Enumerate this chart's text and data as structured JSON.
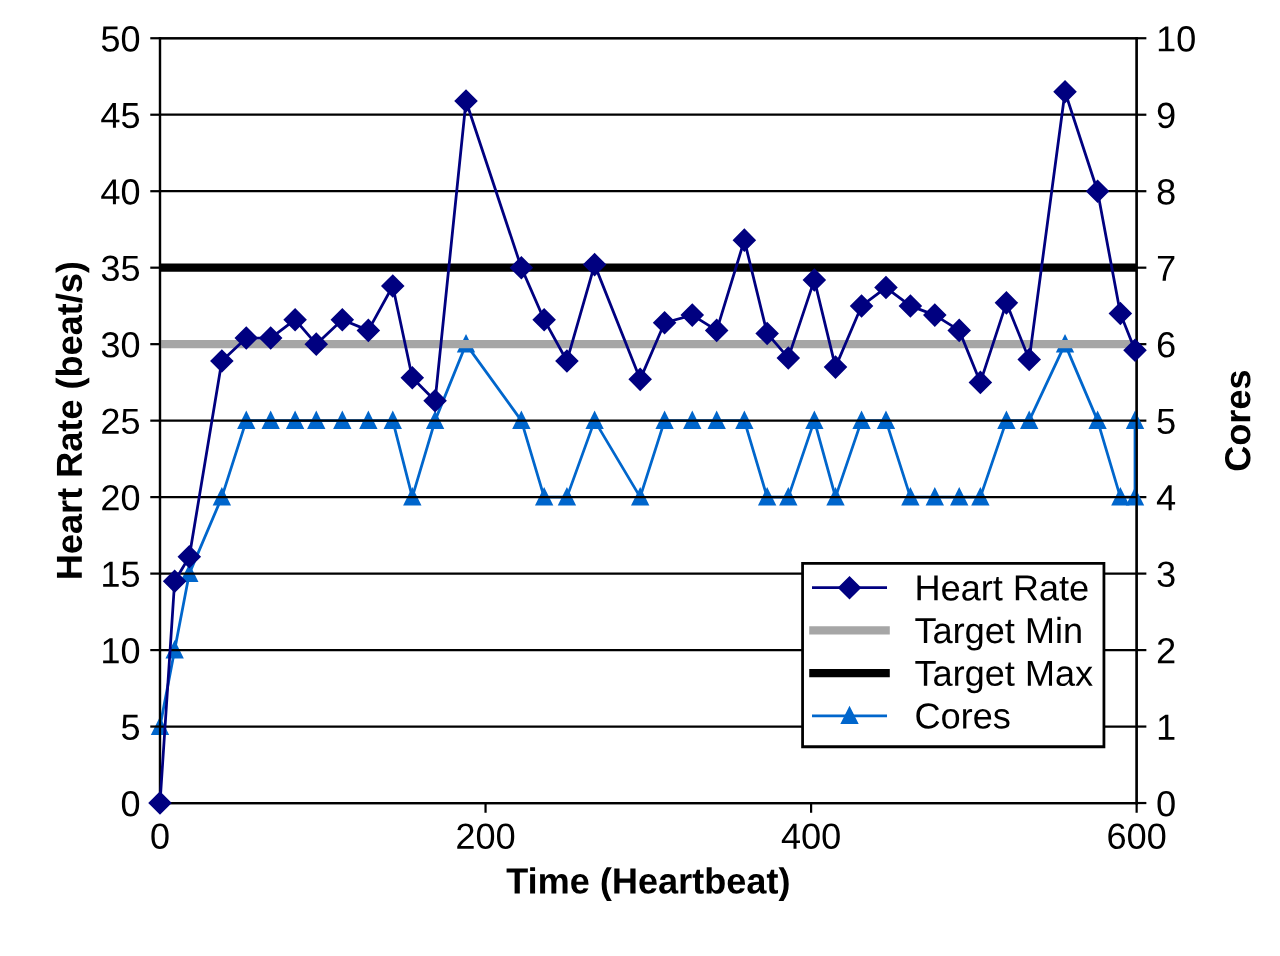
{
  "chart_data": {
    "type": "line",
    "xlabel": "Time (Heartbeat)",
    "ylabel": "Heart Rate (beat/s)",
    "y2label": "Cores",
    "xlim": [
      0,
      600
    ],
    "xticks": [
      0,
      200,
      400,
      600
    ],
    "ylim": [
      0,
      50
    ],
    "yticks": [
      0,
      5,
      10,
      15,
      20,
      25,
      30,
      35,
      40,
      45,
      50
    ],
    "y2lim": [
      0,
      10
    ],
    "y2ticks": [
      0,
      1,
      2,
      3,
      4,
      5,
      6,
      7,
      8,
      9,
      10
    ],
    "grid": "y",
    "legend": "bottom right",
    "line_style": "solid",
    "ref_lines": [
      {
        "axis": "y",
        "value": 30,
        "label": "Target Min",
        "color": "#a6a6a6"
      },
      {
        "axis": "y",
        "value": 35,
        "label": "Target Max",
        "color": "#000000"
      }
    ],
    "series": [
      {
        "name": "Heart Rate",
        "color": "#000080",
        "marker": "diamond",
        "x": [
          0,
          9,
          18,
          38,
          53,
          68,
          83,
          96,
          112,
          128,
          143,
          155,
          169,
          188,
          222,
          236,
          250,
          267,
          295,
          310,
          327,
          342,
          359,
          373,
          386,
          402,
          415,
          431,
          446,
          461,
          476,
          491,
          504,
          520,
          534,
          556,
          576,
          590,
          599
        ],
        "values": [
          0,
          14.5,
          16.1,
          28.9,
          30.4,
          30.4,
          31.6,
          30.0,
          31.6,
          30.9,
          33.8,
          27.8,
          26.3,
          45.9,
          35.0,
          31.6,
          28.9,
          35.2,
          27.7,
          31.4,
          31.9,
          30.9,
          36.8,
          30.7,
          29.1,
          34.2,
          28.5,
          32.5,
          33.7,
          32.5,
          31.9,
          30.9,
          27.5,
          32.7,
          29.0,
          46.5,
          40.0,
          32.0,
          29.6
        ]
      },
      {
        "name": "Cores",
        "color": "#0066cc",
        "marker": "triangle",
        "axis": "y2",
        "x": [
          0,
          9,
          18,
          38,
          53,
          68,
          83,
          96,
          112,
          128,
          143,
          155,
          169,
          188,
          222,
          236,
          250,
          267,
          295,
          310,
          327,
          342,
          359,
          373,
          386,
          402,
          415,
          431,
          446,
          461,
          476,
          491,
          504,
          520,
          534,
          556,
          576,
          590,
          599,
          599
        ],
        "values": [
          1,
          2,
          3,
          4,
          5,
          5,
          5,
          5,
          5,
          5,
          5,
          4,
          5,
          6,
          5,
          4,
          4,
          5,
          4,
          5,
          5,
          5,
          5,
          4,
          4,
          5,
          4,
          5,
          5,
          4,
          4,
          4,
          4,
          5,
          5,
          6,
          5,
          4,
          4,
          5
        ]
      }
    ]
  }
}
